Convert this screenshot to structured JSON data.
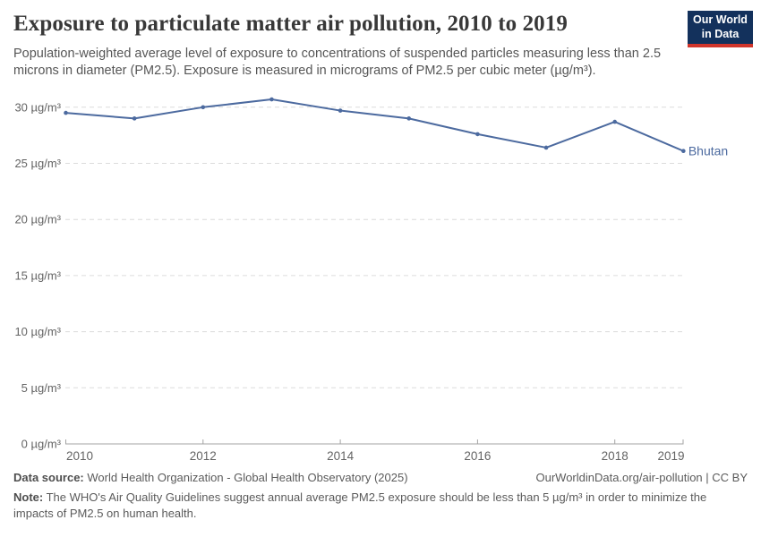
{
  "header": {
    "title": "Exposure to particulate matter air pollution, 2010 to 2019",
    "subtitle": "Population-weighted average level of exposure to concentrations of suspended particles measuring less than 2.5 microns in diameter (PM2.5). Exposure is measured in micrograms of PM2.5 per cubic meter (µg/m³).",
    "logo": {
      "line1": "Our World",
      "line2": "in Data",
      "bg": "#13315c",
      "accent": "#d1352b"
    }
  },
  "chart_data": {
    "type": "line",
    "title": "Exposure to particulate matter air pollution, 2010 to 2019",
    "x": [
      2010,
      2011,
      2012,
      2013,
      2014,
      2015,
      2016,
      2017,
      2018,
      2019
    ],
    "series": [
      {
        "name": "Bhutan",
        "color": "#4c6a9f",
        "values": [
          29.5,
          29.0,
          30.0,
          30.7,
          29.7,
          29.0,
          27.6,
          26.4,
          28.7,
          26.1
        ]
      }
    ],
    "unit": "µg/m³",
    "ylim": [
      0,
      31
    ],
    "xlim": [
      2010,
      2019
    ],
    "yticks": [
      0,
      5,
      10,
      15,
      20,
      25,
      30
    ],
    "ytick_labels": [
      "0 µg/m³",
      "5 µg/m³",
      "10 µg/m³",
      "15 µg/m³",
      "20 µg/m³",
      "25 µg/m³",
      "30 µg/m³"
    ],
    "xticks": [
      2010,
      2012,
      2014,
      2016,
      2018,
      2019
    ],
    "grid": "horizontal-dashed",
    "legend_position": "right-of-line-end"
  },
  "colors": {
    "grid": "#dcdcdc",
    "axis": "#a3a3a3",
    "tick_text": "#646464",
    "series_label": "#4c6a9f"
  },
  "footer": {
    "source_label": "Data source:",
    "source_text": "World Health Organization - Global Health Observatory (2025)",
    "link_text": "OurWorldinData.org/air-pollution | CC BY",
    "note_label": "Note:",
    "note_text": "The WHO's Air Quality Guidelines suggest annual average PM2.5 exposure should be less than 5 µg/m³ in order to minimize the impacts of PM2.5 on human health."
  }
}
